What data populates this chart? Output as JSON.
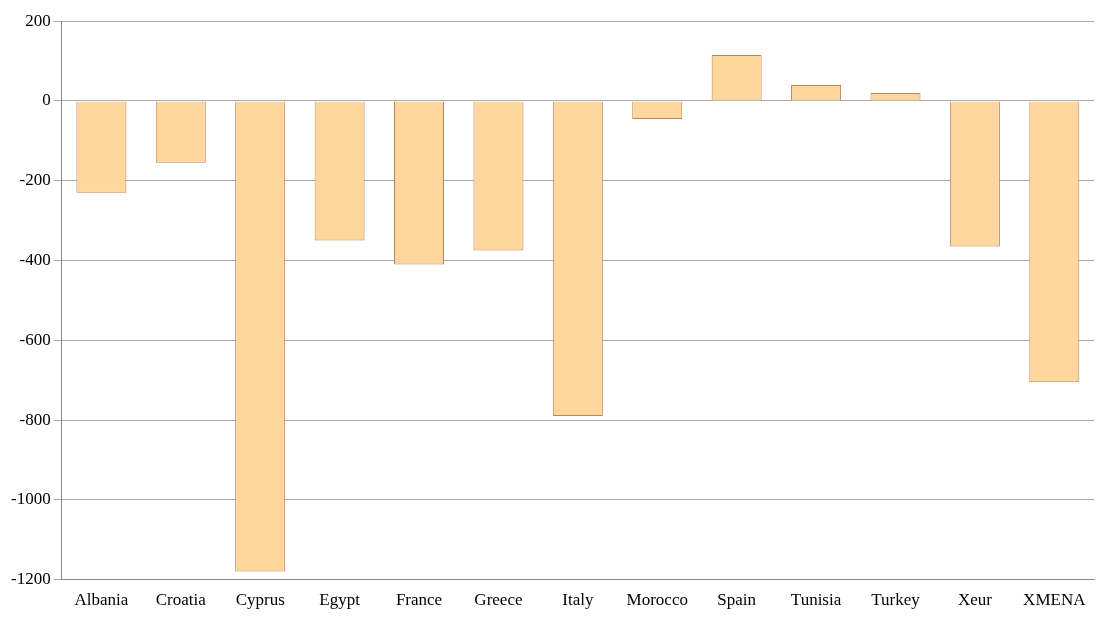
{
  "chart_data": {
    "type": "bar",
    "categories": [
      "Albania",
      "Croatia",
      "Cyprus",
      "Egypt",
      "France",
      "Greece",
      "Italy",
      "Morocco",
      "Spain",
      "Tunisia",
      "Turkey",
      "Xeur",
      "XMENA"
    ],
    "values": [
      -230,
      -155,
      -1180,
      -350,
      -410,
      -375,
      -790,
      -45,
      115,
      40,
      20,
      -365,
      -705
    ],
    "color": "#ffd79e",
    "ylim": [
      -1200,
      200
    ],
    "yticks": [
      -1200,
      -1000,
      -800,
      -600,
      -400,
      -200,
      0,
      200
    ],
    "grid": "y",
    "legend": false
  }
}
